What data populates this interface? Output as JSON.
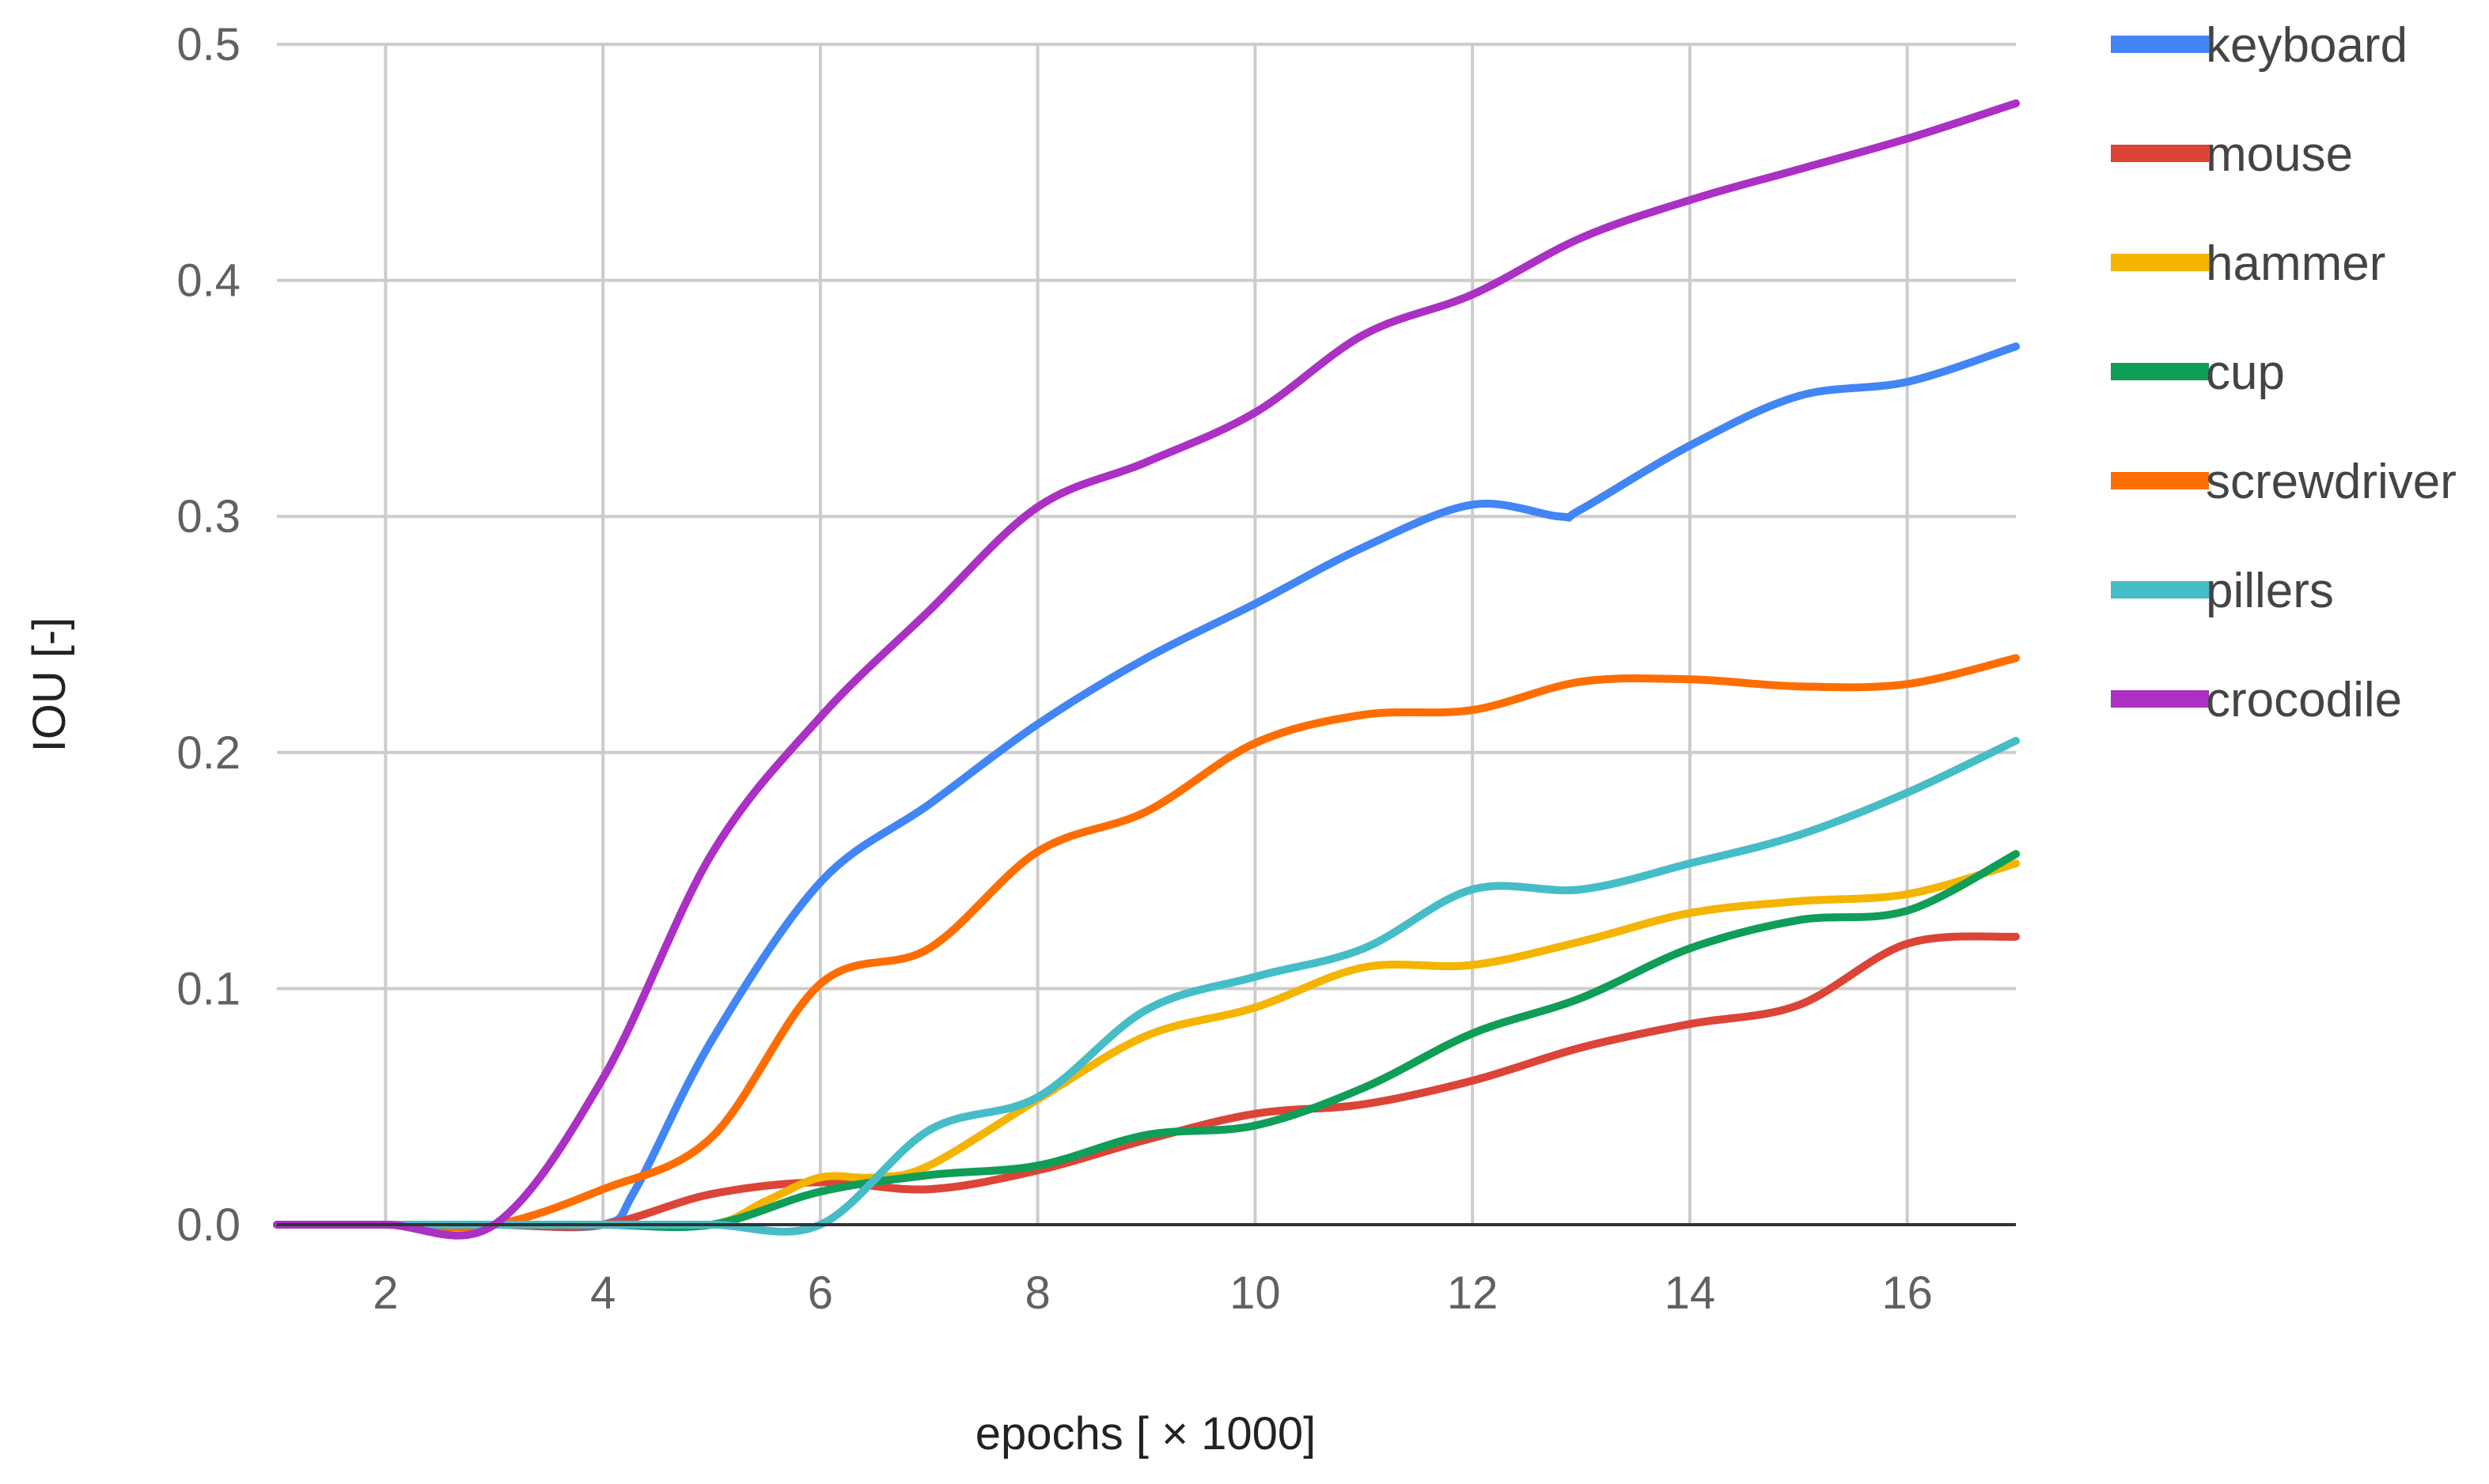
{
  "chart_data": {
    "type": "line",
    "title": "",
    "xlabel": "epochs [ × 1000]",
    "ylabel": "IOU  [-]",
    "xlim": [
      1,
      17
    ],
    "ylim": [
      0,
      0.5
    ],
    "x_ticks": [
      2,
      4,
      6,
      8,
      10,
      12,
      14,
      16
    ],
    "y_ticks": [
      0.0,
      0.1,
      0.2,
      0.3,
      0.4,
      0.5
    ],
    "x_tick_labels": [
      "2",
      "4",
      "6",
      "8",
      "10",
      "12",
      "14",
      "16"
    ],
    "y_tick_labels": [
      "0.0",
      "0.1",
      "0.2",
      "0.3",
      "0.4",
      "0.5"
    ],
    "grid": true,
    "legend_position": "right",
    "series": [
      {
        "name": "keyboard",
        "color": "#4285F4",
        "points": [
          [
            1,
            0
          ],
          [
            2,
            0
          ],
          [
            3,
            0
          ],
          [
            4,
            0
          ],
          [
            4.3,
            0.015
          ],
          [
            5,
            0.078
          ],
          [
            6,
            0.145
          ],
          [
            7,
            0.178
          ],
          [
            8,
            0.212
          ],
          [
            9,
            0.24
          ],
          [
            10,
            0.263
          ],
          [
            11,
            0.287
          ],
          [
            12,
            0.305
          ],
          [
            12.8,
            0.3
          ],
          [
            13,
            0.303
          ],
          [
            14,
            0.33
          ],
          [
            15,
            0.351
          ],
          [
            16,
            0.357
          ],
          [
            17,
            0.372
          ]
        ]
      },
      {
        "name": "mouse",
        "color": "#DB4437",
        "points": [
          [
            1,
            0
          ],
          [
            2,
            0
          ],
          [
            3,
            0
          ],
          [
            4,
            0
          ],
          [
            5,
            0.013
          ],
          [
            6,
            0.018
          ],
          [
            7,
            0.015
          ],
          [
            8,
            0.023
          ],
          [
            9,
            0.036
          ],
          [
            10,
            0.047
          ],
          [
            11,
            0.051
          ],
          [
            12,
            0.061
          ],
          [
            13,
            0.075
          ],
          [
            14,
            0.085
          ],
          [
            15,
            0.093
          ],
          [
            16,
            0.119
          ],
          [
            17,
            0.122
          ]
        ]
      },
      {
        "name": "hammer",
        "color": "#F4B400",
        "points": [
          [
            1,
            0
          ],
          [
            2,
            0
          ],
          [
            3,
            0
          ],
          [
            4,
            0
          ],
          [
            5,
            0
          ],
          [
            5.5,
            0.01
          ],
          [
            6,
            0.02
          ],
          [
            6.5,
            0.02
          ],
          [
            7,
            0.025
          ],
          [
            8,
            0.053
          ],
          [
            9,
            0.08
          ],
          [
            10,
            0.092
          ],
          [
            11,
            0.109
          ],
          [
            12,
            0.11
          ],
          [
            13,
            0.12
          ],
          [
            14,
            0.132
          ],
          [
            15,
            0.137
          ],
          [
            16,
            0.14
          ],
          [
            17,
            0.153
          ]
        ]
      },
      {
        "name": "cup",
        "color": "#0F9D58",
        "points": [
          [
            1,
            0
          ],
          [
            2,
            0
          ],
          [
            3,
            0
          ],
          [
            4,
            0
          ],
          [
            5,
            0
          ],
          [
            6,
            0.014
          ],
          [
            7,
            0.021
          ],
          [
            8,
            0.025
          ],
          [
            9,
            0.038
          ],
          [
            10,
            0.042
          ],
          [
            11,
            0.058
          ],
          [
            12,
            0.081
          ],
          [
            13,
            0.096
          ],
          [
            14,
            0.117
          ],
          [
            15,
            0.129
          ],
          [
            16,
            0.133
          ],
          [
            17,
            0.157
          ]
        ]
      },
      {
        "name": "screwdriver",
        "color": "#FF6D00",
        "points": [
          [
            1,
            0
          ],
          [
            2,
            0
          ],
          [
            3,
            0
          ],
          [
            4,
            0.015
          ],
          [
            5,
            0.037
          ],
          [
            6,
            0.102
          ],
          [
            7,
            0.117
          ],
          [
            8,
            0.158
          ],
          [
            9,
            0.175
          ],
          [
            10,
            0.204
          ],
          [
            11,
            0.216
          ],
          [
            12,
            0.218
          ],
          [
            13,
            0.23
          ],
          [
            14,
            0.231
          ],
          [
            15,
            0.228
          ],
          [
            16,
            0.229
          ],
          [
            17,
            0.24
          ]
        ]
      },
      {
        "name": "pillers",
        "color": "#46BDC6",
        "points": [
          [
            1,
            0
          ],
          [
            2,
            0
          ],
          [
            3,
            0
          ],
          [
            4,
            0
          ],
          [
            5,
            0
          ],
          [
            6,
            0
          ],
          [
            7,
            0.04
          ],
          [
            8,
            0.054
          ],
          [
            9,
            0.091
          ],
          [
            10,
            0.105
          ],
          [
            11,
            0.117
          ],
          [
            12,
            0.142
          ],
          [
            13,
            0.142
          ],
          [
            14,
            0.153
          ],
          [
            15,
            0.165
          ],
          [
            16,
            0.183
          ],
          [
            17,
            0.205
          ]
        ]
      },
      {
        "name": "crocodile",
        "color": "#AB30C4",
        "points": [
          [
            1,
            0
          ],
          [
            2,
            0
          ],
          [
            3,
            0
          ],
          [
            4,
            0.062
          ],
          [
            5,
            0.157
          ],
          [
            6,
            0.215
          ],
          [
            7,
            0.26
          ],
          [
            8,
            0.304
          ],
          [
            9,
            0.323
          ],
          [
            10,
            0.344
          ],
          [
            11,
            0.377
          ],
          [
            12,
            0.394
          ],
          [
            13,
            0.418
          ],
          [
            14,
            0.434
          ],
          [
            15,
            0.447
          ],
          [
            16,
            0.46
          ],
          [
            17,
            0.475
          ]
        ]
      }
    ]
  }
}
